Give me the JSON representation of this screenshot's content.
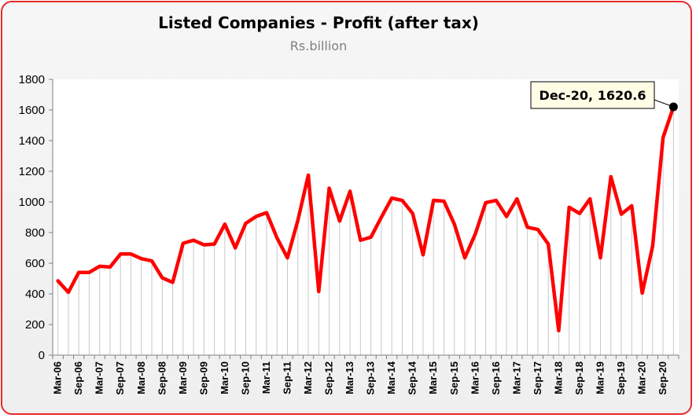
{
  "chart_data": {
    "type": "line",
    "title": "Listed Companies - Profit (after tax)",
    "subtitle": "Rs.billion",
    "xlabel": "",
    "ylabel": "",
    "ylim": [
      0,
      1800
    ],
    "yticks": [
      0,
      200,
      400,
      600,
      800,
      1000,
      1200,
      1400,
      1600,
      1800
    ],
    "grid": "vertical drop lines",
    "legend": "none",
    "line_color": "#ff0000",
    "accent_color": "#e82a2a",
    "x": [
      "Mar-06",
      "Jun-06",
      "Sep-06",
      "Dec-06",
      "Mar-07",
      "Jun-07",
      "Sep-07",
      "Dec-07",
      "Mar-08",
      "Jun-08",
      "Sep-08",
      "Dec-08",
      "Mar-09",
      "Jun-09",
      "Sep-09",
      "Dec-09",
      "Mar-10",
      "Jun-10",
      "Sep-10",
      "Dec-10",
      "Mar-11",
      "Jun-11",
      "Sep-11",
      "Dec-11",
      "Mar-12",
      "Jun-12",
      "Sep-12",
      "Dec-12",
      "Mar-13",
      "Jun-13",
      "Sep-13",
      "Dec-13",
      "Mar-14",
      "Jun-14",
      "Sep-14",
      "Dec-14",
      "Mar-15",
      "Jun-15",
      "Sep-15",
      "Dec-15",
      "Mar-16",
      "Jun-16",
      "Sep-16",
      "Dec-16",
      "Mar-17",
      "Jun-17",
      "Sep-17",
      "Dec-17",
      "Mar-18",
      "Jun-18",
      "Sep-18",
      "Dec-18",
      "Mar-19",
      "Jun-19",
      "Sep-19",
      "Dec-19",
      "Mar-20",
      "Jun-20",
      "Sep-20",
      "Dec-20"
    ],
    "x_tick_labels": [
      "Mar-06",
      "Sep-06",
      "Mar-07",
      "Sep-07",
      "Mar-08",
      "Sep-08",
      "Mar-09",
      "Sep-09",
      "Mar-10",
      "Sep-10",
      "Mar-11",
      "Sep-11",
      "Mar-12",
      "Sep-12",
      "Mar-13",
      "Sep-13",
      "Mar-14",
      "Sep-14",
      "Mar-15",
      "Sep-15",
      "Mar-16",
      "Sep-16",
      "Mar-17",
      "Sep-17",
      "Mar-18",
      "Sep-18",
      "Mar-19",
      "Sep-19",
      "Mar-20",
      "Sep-20"
    ],
    "values": [
      485,
      410,
      540,
      540,
      580,
      575,
      660,
      660,
      630,
      615,
      505,
      475,
      730,
      750,
      720,
      725,
      855,
      700,
      860,
      905,
      930,
      765,
      635,
      880,
      1175,
      415,
      1090,
      875,
      1070,
      750,
      770,
      900,
      1025,
      1010,
      925,
      655,
      1010,
      1005,
      855,
      635,
      790,
      995,
      1010,
      905,
      1020,
      835,
      820,
      725,
      160,
      965,
      925,
      1020,
      635,
      1165,
      920,
      975,
      405,
      710,
      1420,
      1620.6
    ],
    "annotation": {
      "label": "Dec-20, 1620.6",
      "x": "Dec-20",
      "y": 1620.6
    }
  }
}
